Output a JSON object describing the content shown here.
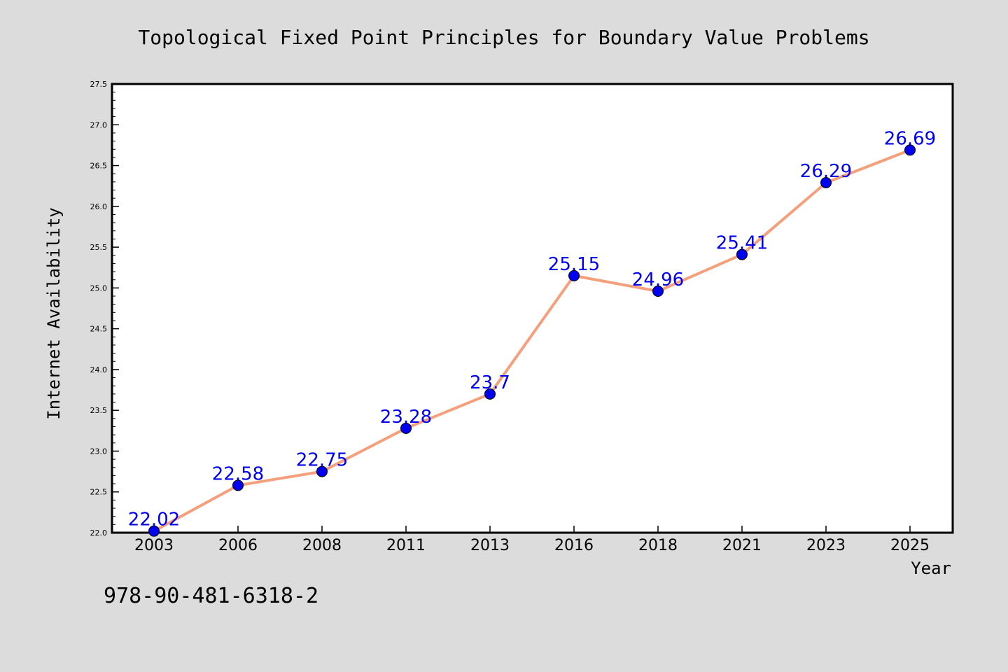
{
  "chart_data": {
    "type": "line",
    "title": "Topological Fixed Point Principles for Boundary Value Problems",
    "xlabel": "Year",
    "ylabel": "Internet Availability",
    "categories": [
      "2003",
      "2006",
      "2008",
      "2011",
      "2013",
      "2016",
      "2018",
      "2021",
      "2023",
      "2025"
    ],
    "series": [
      {
        "values": [
          22.02,
          22.58,
          22.75,
          23.28,
          23.7,
          25.15,
          24.96,
          25.41,
          26.29,
          26.69
        ],
        "labels": [
          "22.02",
          "22.58",
          "22.75",
          "23.28",
          "23.7",
          "25.15",
          "24.96",
          "25.41",
          "26.29",
          "26.69"
        ],
        "line_color": "#f4a07c",
        "marker_color": "#0000ee",
        "label_color": "#0000ee"
      }
    ],
    "ylim": [
      22.0,
      27.5
    ],
    "yticks": [
      "22.0",
      "22.5",
      "23.0",
      "23.5",
      "24.0",
      "24.5",
      "25.0",
      "25.5",
      "26.0",
      "26.5",
      "27.0",
      "27.5"
    ],
    "grid": false,
    "legend": "none"
  },
  "footer": {
    "isbn": "978-90-481-6318-2"
  },
  "colors": {
    "background": "#dcdcdc",
    "plot_background": "#ffffff"
  }
}
